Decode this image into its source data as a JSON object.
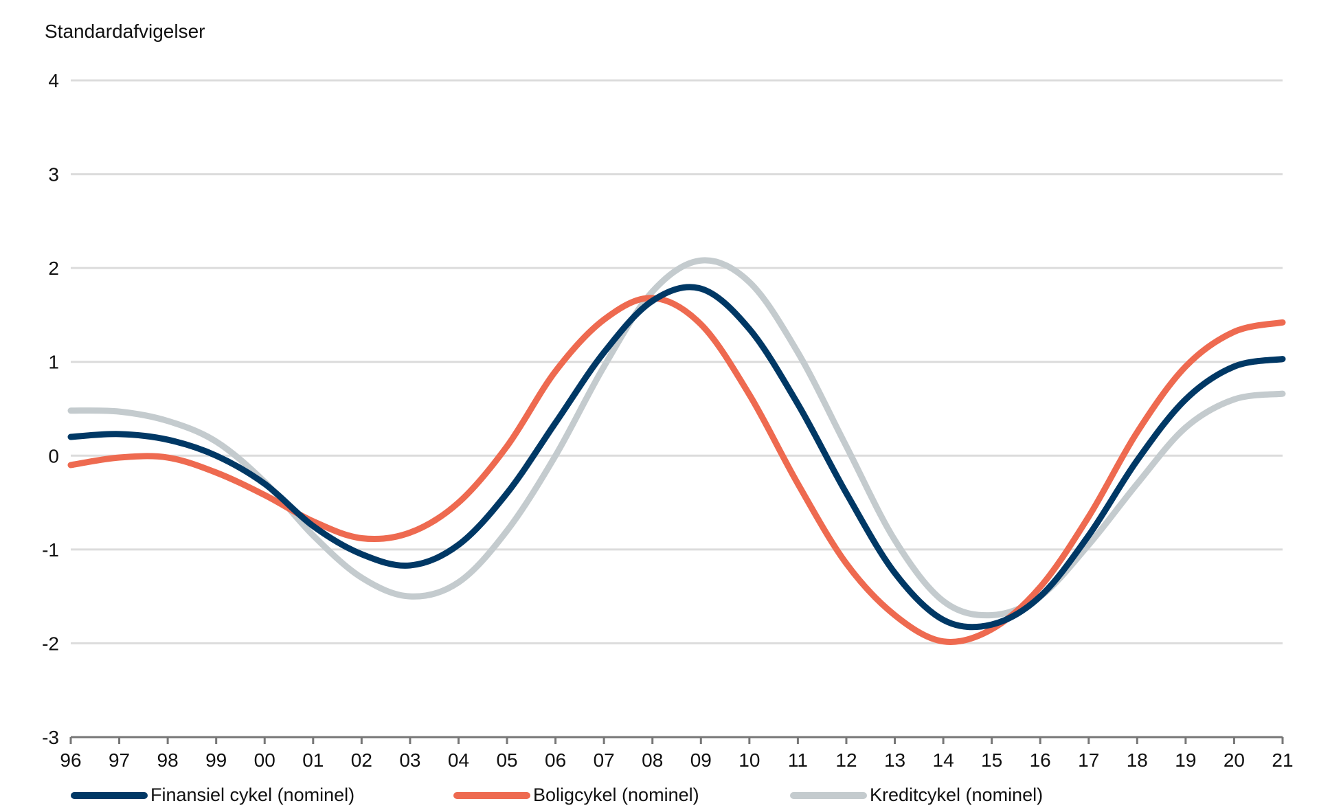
{
  "chart_data": {
    "type": "line",
    "ylabel": "Standardafvigelser",
    "xlabel": "",
    "ylim": [
      -3,
      4
    ],
    "yticks": [
      "4",
      "3",
      "2",
      "1",
      "0",
      "-1",
      "-2",
      "-3"
    ],
    "x": [
      "96",
      "97",
      "98",
      "99",
      "00",
      "01",
      "02",
      "03",
      "04",
      "05",
      "06",
      "07",
      "08",
      "09",
      "10",
      "11",
      "12",
      "13",
      "14",
      "15",
      "16",
      "17",
      "18",
      "19",
      "20",
      "21"
    ],
    "grid": true,
    "legend_position": "bottom",
    "series": [
      {
        "name": "Finansiel cykel (nominel)",
        "color": "#003865",
        "values": [
          0.2,
          0.23,
          0.17,
          0.0,
          -0.3,
          -0.75,
          -1.05,
          -1.17,
          -0.95,
          -0.4,
          0.35,
          1.1,
          1.65,
          1.78,
          1.35,
          0.55,
          -0.4,
          -1.25,
          -1.75,
          -1.8,
          -1.5,
          -0.85,
          -0.05,
          0.6,
          0.95,
          1.03
        ]
      },
      {
        "name": "Boligcykel (nominel)",
        "color": "#EE6A50",
        "values": [
          -0.1,
          -0.02,
          -0.02,
          -0.18,
          -0.42,
          -0.7,
          -0.88,
          -0.82,
          -0.5,
          0.1,
          0.9,
          1.45,
          1.68,
          1.4,
          0.65,
          -0.3,
          -1.15,
          -1.7,
          -1.98,
          -1.85,
          -1.4,
          -0.65,
          0.25,
          0.95,
          1.32,
          1.42
        ]
      },
      {
        "name": "Kreditcykel (nominel)",
        "color": "#C4CBCE",
        "values": [
          0.48,
          0.47,
          0.37,
          0.15,
          -0.28,
          -0.85,
          -1.3,
          -1.5,
          -1.35,
          -0.8,
          0.0,
          0.95,
          1.75,
          2.08,
          1.85,
          1.1,
          0.1,
          -0.9,
          -1.55,
          -1.7,
          -1.5,
          -0.95,
          -0.3,
          0.3,
          0.6,
          0.66
        ]
      }
    ]
  }
}
